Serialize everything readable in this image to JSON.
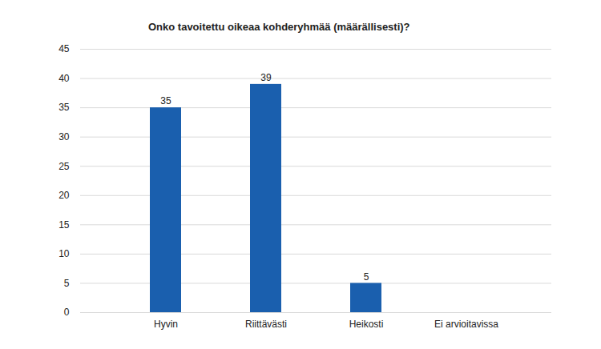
{
  "chart_data": {
    "type": "bar",
    "title": "Onko tavoitettu oikeaa kohderyhmää (määrällisesti)?",
    "categories": [
      "Hyvin",
      "Riittävästi",
      "Heikosti",
      "Ei arvioitavissa"
    ],
    "values": [
      35,
      39,
      5,
      null
    ],
    "color": "#1a5fae",
    "ylim": [
      0,
      45
    ],
    "yticks": [
      0,
      5,
      10,
      15,
      20,
      25,
      30,
      35,
      40,
      45
    ],
    "grid": true,
    "data_labels": true
  }
}
